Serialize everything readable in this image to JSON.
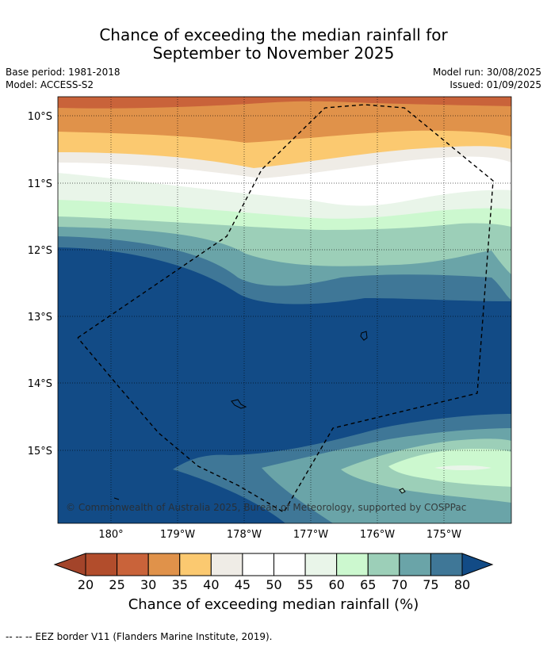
{
  "title_line1": "Chance of exceeding the median rainfall for",
  "title_line2": "September to November 2025",
  "base_period": "Base period: 1981-2018",
  "model": "Model: ACCESS-S2",
  "model_run": "Model run: 30/08/2025",
  "issued": "Issued: 01/09/2025",
  "copyright": "© Commonwealth of Australia 2025, Bureau of Meteorology, supported by COSPPac",
  "lat_labels": [
    "10°S",
    "11°S",
    "12°S",
    "13°S",
    "14°S",
    "15°S"
  ],
  "lon_labels": [
    "180°",
    "179°W",
    "178°W",
    "177°W",
    "176°W",
    "175°W"
  ],
  "colorbar": {
    "ticks": [
      "20",
      "25",
      "30",
      "35",
      "40",
      "45",
      "50",
      "55",
      "60",
      "65",
      "70",
      "75",
      "80"
    ],
    "colors": [
      "#b24d2c",
      "#c9633a",
      "#e0924a",
      "#fbc970",
      "#efece6",
      "#ffffff",
      "#ffffff",
      "#e9f5e9",
      "#ccf8cf",
      "#9ccfb8",
      "#6aa4a8",
      "#3f7797"
    ],
    "under_color": "#a3442a",
    "over_color": "#124b86",
    "label": "Chance of exceeding median rainfall (%)"
  },
  "band_colors": {
    "c25_30": "#c9633a",
    "c30_35": "#e0924a",
    "c35_40": "#fbc970",
    "c40_45": "#efece6",
    "c45_55": "#ffffff",
    "c55_60": "#e9f5e9",
    "c60_65": "#ccf8cf",
    "c65_70": "#9ccfb8",
    "c70_75": "#6aa4a8",
    "c75_80": "#3f7797",
    "c80_plus": "#124b86"
  },
  "footnote": "--  --  -- EEZ border V11 (Flanders Marine Institute, 2019)."
}
